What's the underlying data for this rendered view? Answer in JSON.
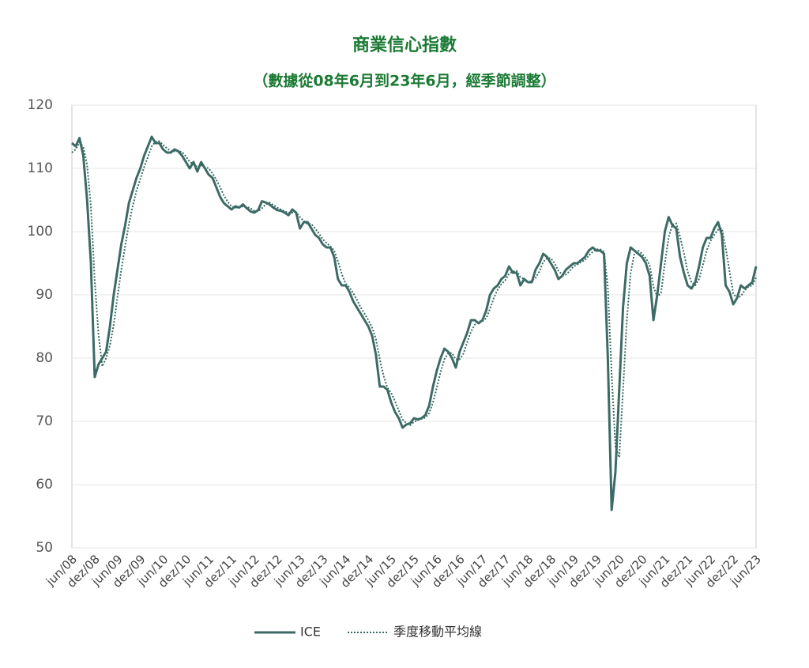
{
  "chart_data": {
    "type": "line",
    "title": "商業信心指數",
    "subtitle": "（數據從08年6月到23年6月，經季節調整）",
    "categories": [
      "jun/08",
      null,
      null,
      null,
      null,
      null,
      "dez/08",
      null,
      null,
      null,
      null,
      null,
      "jun/09",
      null,
      null,
      null,
      null,
      null,
      "dez/09",
      null,
      null,
      null,
      null,
      null,
      "jun/10",
      null,
      null,
      null,
      null,
      null,
      "dez/10",
      null,
      null,
      null,
      null,
      null,
      "jun/11",
      null,
      null,
      null,
      null,
      null,
      "dez/11",
      null,
      null,
      null,
      null,
      null,
      "jun/12",
      null,
      null,
      null,
      null,
      null,
      "dez/12",
      null,
      null,
      null,
      null,
      null,
      "jun/13",
      null,
      null,
      null,
      null,
      null,
      "dez/13",
      null,
      null,
      null,
      null,
      null,
      "jun/14",
      null,
      null,
      null,
      null,
      null,
      "dez/14",
      null,
      null,
      null,
      null,
      null,
      "jun/15",
      null,
      null,
      null,
      null,
      null,
      "dez/15",
      null,
      null,
      null,
      null,
      null,
      "jun/16",
      null,
      null,
      null,
      null,
      null,
      "dez/16",
      null,
      null,
      null,
      null,
      null,
      "jun/17",
      null,
      null,
      null,
      null,
      null,
      "dez/17",
      null,
      null,
      null,
      null,
      null,
      "jun/18",
      null,
      null,
      null,
      null,
      null,
      "dez/18",
      null,
      null,
      null,
      null,
      null,
      "jun/19",
      null,
      null,
      null,
      null,
      null,
      "dez/19",
      null,
      null,
      null,
      null,
      null,
      "jun/20",
      null,
      null,
      null,
      null,
      null,
      "dez/20",
      null,
      null,
      null,
      null,
      null,
      "jun/21",
      null,
      null,
      null,
      null,
      null,
      "dez/21",
      null,
      null,
      null,
      null,
      null,
      "jun/22",
      null,
      null,
      null,
      null,
      null,
      "dez/22",
      null,
      null,
      null,
      null,
      null,
      "jun/23"
    ],
    "series": [
      {
        "name": "ICE",
        "color": "#3b6b64",
        "style": "solid",
        "values": [
          114,
          113.5,
          114.8,
          112,
          105,
          95,
          77,
          79,
          80,
          81,
          85,
          90,
          94,
          98,
          101,
          104.5,
          106.5,
          108.5,
          110,
          112,
          113.5,
          115,
          114,
          114,
          113,
          112.5,
          112.5,
          113,
          112.7,
          112,
          111,
          110,
          111,
          109.5,
          111,
          110,
          109,
          108.5,
          107,
          105.5,
          104.5,
          104,
          103.5,
          104,
          103.8,
          104.3,
          103.7,
          103.2,
          103,
          103.4,
          104.8,
          104.6,
          104.3,
          103.8,
          103.4,
          103.3,
          103,
          102.6,
          103.5,
          103,
          100.5,
          101.5,
          101.5,
          100.5,
          99.5,
          99,
          98,
          97.5,
          97.5,
          96,
          92.5,
          91.5,
          91.5,
          90.5,
          89,
          88,
          87,
          86,
          85,
          83.5,
          80.5,
          75.5,
          75.5,
          75,
          73,
          71.5,
          70.5,
          69,
          69.5,
          69.7,
          70.5,
          70.3,
          70.5,
          71,
          72.5,
          75.5,
          78,
          80,
          81.5,
          81,
          80,
          78.5,
          81,
          82.5,
          84,
          86,
          86,
          85.5,
          86,
          87.5,
          90,
          91,
          91.5,
          92.5,
          93,
          94.5,
          93.5,
          93.5,
          91.5,
          92.5,
          92,
          92,
          94,
          95,
          96.5,
          96,
          95,
          94,
          92.5,
          93,
          94,
          94.5,
          95,
          95,
          95.5,
          96,
          97,
          97.5,
          97,
          97,
          96.5,
          80,
          56,
          62,
          75,
          88,
          95,
          97.5,
          97,
          96.5,
          96,
          95,
          93,
          86,
          90,
          95,
          100,
          102.3,
          101,
          100.5,
          96,
          93.5,
          91.5,
          91,
          92,
          94.5,
          97.5,
          99,
          99,
          100.5,
          101.5,
          99.5,
          91.5,
          90.5,
          88.5,
          89.5,
          91.5,
          91,
          91.5,
          92,
          94.5
        ]
      },
      {
        "name": "季度移動平均線",
        "color": "#3b6b64",
        "style": "dotted",
        "values": [
          112.5,
          113,
          114.1,
          113.4,
          110.6,
          104,
          92.3,
          83.7,
          78.7,
          80,
          82,
          85.3,
          89.7,
          94,
          97.7,
          101.2,
          104,
          106.5,
          108.3,
          110.2,
          111.8,
          113.5,
          114.2,
          114.3,
          113.7,
          113.2,
          112.7,
          112.7,
          112.7,
          112.6,
          111.9,
          111,
          110.7,
          110.2,
          110.5,
          110.2,
          110,
          109.2,
          108.2,
          107,
          105.7,
          104.7,
          104,
          103.8,
          103.8,
          104,
          103.9,
          103.7,
          103.3,
          103.2,
          103.7,
          104.3,
          104.6,
          104.2,
          103.8,
          103.5,
          103.2,
          103,
          103,
          103,
          102.3,
          101.7,
          101.2,
          101.2,
          100.5,
          99.7,
          98.8,
          98.2,
          97.7,
          97,
          95.3,
          93.3,
          91.8,
          91.2,
          90.3,
          89.2,
          88,
          87,
          86,
          84.8,
          83,
          79.8,
          77.2,
          75.3,
          74.5,
          73.2,
          71.7,
          70.3,
          69.7,
          69.4,
          69.9,
          70.2,
          70.4,
          70.6,
          71.3,
          73,
          75.3,
          77.8,
          79.8,
          80.8,
          80.8,
          79.8,
          79.8,
          80.7,
          82.5,
          84.2,
          85.3,
          85.8,
          85.8,
          86.3,
          87.8,
          89.5,
          90.8,
          91.7,
          92.3,
          93.3,
          93.7,
          93.8,
          92.8,
          92.5,
          92,
          92.2,
          92.7,
          93.7,
          95.2,
          95.8,
          95.8,
          95,
          93.8,
          93.2,
          93.2,
          93.8,
          94.5,
          94.8,
          95.2,
          95.5,
          96.2,
          96.8,
          97.2,
          97.2,
          96.8,
          91.2,
          77.5,
          66,
          64.3,
          75,
          86,
          93.5,
          96.5,
          97,
          96.5,
          95.8,
          94.7,
          91.3,
          89.7,
          90.3,
          95,
          99.1,
          101.1,
          101.3,
          99.2,
          96.7,
          93.7,
          92,
          91.5,
          92.5,
          94.7,
          97,
          98.5,
          99.5,
          100.3,
          100.5,
          97.5,
          93.8,
          90.2,
          89.5,
          89.8,
          90.7,
          91.3,
          91.5,
          92.7
        ]
      }
    ],
    "ylim": [
      50,
      120
    ],
    "yticks": [
      50,
      60,
      70,
      80,
      90,
      100,
      110,
      120
    ],
    "grid": true
  }
}
